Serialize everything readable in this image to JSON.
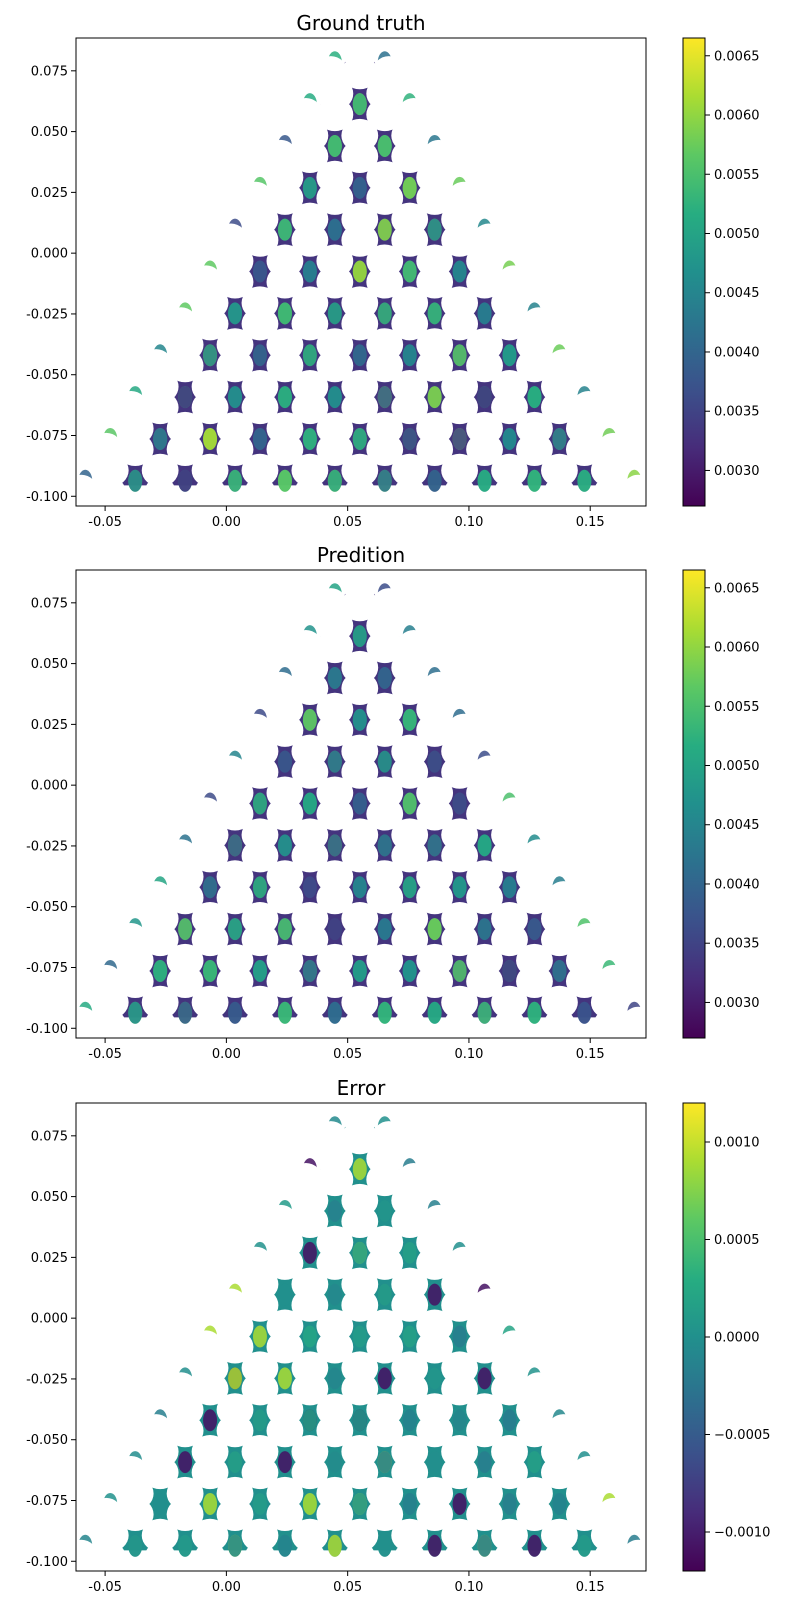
{
  "chart_data": [
    {
      "type": "heatmap",
      "title": "Ground truth",
      "xlabel": "",
      "ylabel": "",
      "xlim": [
        -0.062,
        0.173
      ],
      "ylim": [
        -0.104,
        0.0885
      ],
      "xticks": [
        "-0.05",
        "0.00",
        "0.05",
        "0.10",
        "0.15"
      ],
      "xtick_values": [
        -0.05,
        0.0,
        0.05,
        0.1,
        0.15
      ],
      "yticks": [
        "0.075",
        "0.050",
        "0.025",
        "0.000",
        "-0.025",
        "-0.050",
        "-0.075",
        "-0.100"
      ],
      "ytick_values": [
        0.075,
        0.05,
        0.025,
        0.0,
        -0.025,
        -0.05,
        -0.075,
        -0.1
      ],
      "geometry": {
        "shape": "equilateral-triangle lattice with circular holes",
        "apex": [
          0.055,
          0.089
        ],
        "base_y": -0.0955,
        "base_x": [
          -0.052,
          0.162
        ],
        "hole_rows": 11
      },
      "colorbar": {
        "colormap": "viridis",
        "range": [
          0.0027,
          0.00665
        ],
        "ticks": [
          "0.0030",
          "0.0035",
          "0.0040",
          "0.0045",
          "0.0050",
          "0.0055",
          "0.0060",
          "0.0065"
        ],
        "tick_values": [
          0.003,
          0.0035,
          0.004,
          0.0045,
          0.005,
          0.0055,
          0.006,
          0.0065
        ]
      },
      "field": {
        "base": 0.0033,
        "hot": 0.0062,
        "mode": "stress"
      }
    },
    {
      "type": "heatmap",
      "title": "Predition",
      "xlabel": "",
      "ylabel": "",
      "xlim": [
        -0.062,
        0.173
      ],
      "ylim": [
        -0.104,
        0.0885
      ],
      "xticks": [
        "-0.05",
        "0.00",
        "0.05",
        "0.10",
        "0.15"
      ],
      "xtick_values": [
        -0.05,
        0.0,
        0.05,
        0.1,
        0.15
      ],
      "yticks": [
        "0.075",
        "0.050",
        "0.025",
        "0.000",
        "-0.025",
        "-0.050",
        "-0.075",
        "-0.100"
      ],
      "ytick_values": [
        0.075,
        0.05,
        0.025,
        0.0,
        -0.025,
        -0.05,
        -0.075,
        -0.1
      ],
      "geometry": {
        "shape": "equilateral-triangle lattice with circular holes",
        "apex": [
          0.055,
          0.089
        ],
        "base_y": -0.0955,
        "base_x": [
          -0.052,
          0.162
        ],
        "hole_rows": 11
      },
      "colorbar": {
        "colormap": "viridis",
        "range": [
          0.0027,
          0.00665
        ],
        "ticks": [
          "0.0030",
          "0.0035",
          "0.0040",
          "0.0045",
          "0.0050",
          "0.0055",
          "0.0060",
          "0.0065"
        ],
        "tick_values": [
          0.003,
          0.0035,
          0.004,
          0.0045,
          0.005,
          0.0055,
          0.006,
          0.0065
        ]
      },
      "field": {
        "base": 0.0033,
        "hot": 0.0058,
        "mode": "stress"
      }
    },
    {
      "type": "heatmap",
      "title": "Error",
      "xlabel": "",
      "ylabel": "",
      "xlim": [
        -0.062,
        0.173
      ],
      "ylim": [
        -0.104,
        0.0885
      ],
      "xticks": [
        "-0.05",
        "0.00",
        "0.05",
        "0.10",
        "0.15"
      ],
      "xtick_values": [
        -0.05,
        0.0,
        0.05,
        0.1,
        0.15
      ],
      "yticks": [
        "0.075",
        "0.050",
        "0.025",
        "0.000",
        "-0.025",
        "-0.050",
        "-0.075",
        "-0.100"
      ],
      "ytick_values": [
        0.075,
        0.05,
        0.025,
        0.0,
        -0.025,
        -0.05,
        -0.075,
        -0.1
      ],
      "geometry": {
        "shape": "equilateral-triangle lattice with circular holes",
        "apex": [
          0.055,
          0.089
        ],
        "base_y": -0.0955,
        "base_x": [
          -0.052,
          0.162
        ],
        "hole_rows": 11
      },
      "colorbar": {
        "colormap": "viridis",
        "range": [
          -0.0012,
          0.0012
        ],
        "ticks": [
          "0.0010",
          "0.0005",
          "0.0000",
          "−0.0005",
          "−0.0010"
        ],
        "tick_values": [
          0.001,
          0.0005,
          0.0,
          -0.0005,
          -0.001
        ]
      },
      "field": {
        "base": 0.0,
        "hot": 0.0009,
        "mode": "error"
      }
    }
  ]
}
